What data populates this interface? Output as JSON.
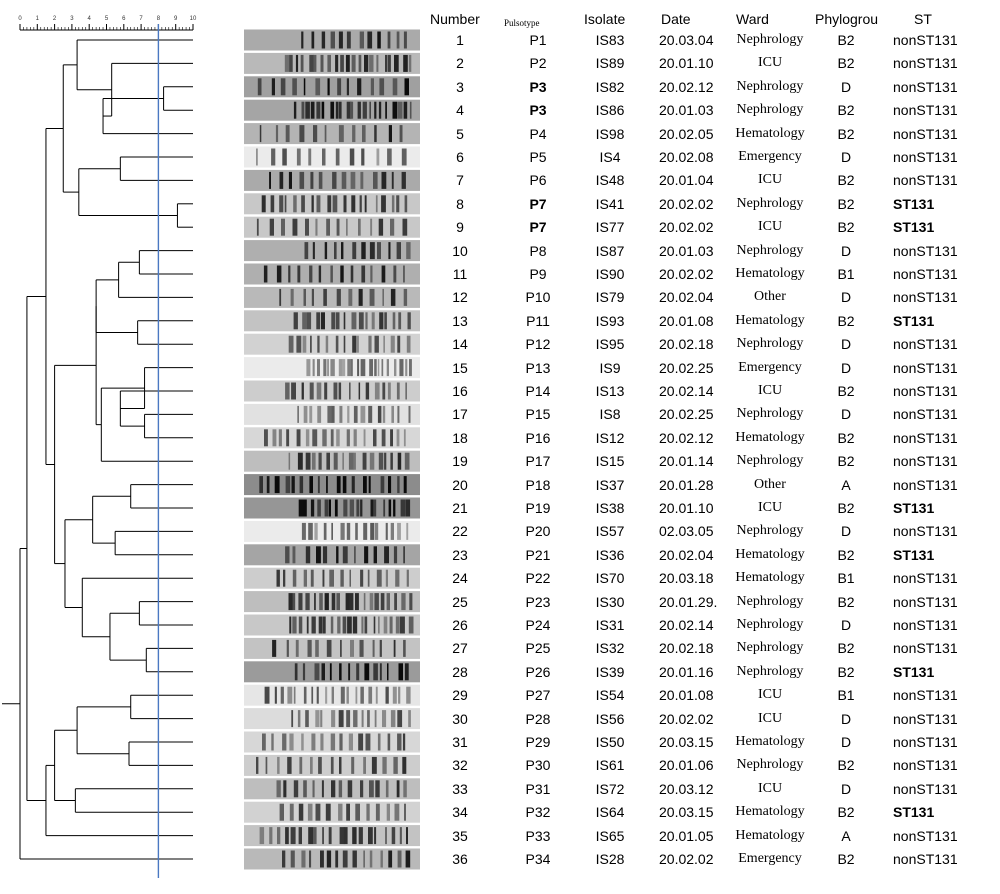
{
  "header": {
    "number": "Number",
    "pulsotype": "Pulsotype",
    "isolate": "Isolate",
    "date": "Date",
    "ward": "Ward",
    "phylogroup": "Phylogrou",
    "st": "ST"
  },
  "scale_ticks": [
    "0",
    "1",
    "2",
    "3",
    "4",
    "5",
    "6",
    "7",
    "8",
    "9",
    "10"
  ],
  "cutoff_similarity": 0.8,
  "colors": {
    "cutoff_line": "#4a78c2",
    "ink": "#000000"
  },
  "rows": [
    {
      "number": "1",
      "pulsotype": "P1",
      "isolate": "IS83",
      "date": "20.03.04",
      "ward": "Nephrology",
      "phylogroup": "B2",
      "st": "nonST131",
      "pulsotype_bold": false,
      "st_bold": false
    },
    {
      "number": "2",
      "pulsotype": "P2",
      "isolate": "IS89",
      "date": "20.01.10",
      "ward": "ICU",
      "phylogroup": "B2",
      "st": "nonST131",
      "pulsotype_bold": false,
      "st_bold": false
    },
    {
      "number": "3",
      "pulsotype": "P3",
      "isolate": "IS82",
      "date": "20.02.12",
      "ward": "Nephrology",
      "phylogroup": "D",
      "st": "nonST131",
      "pulsotype_bold": true,
      "st_bold": false
    },
    {
      "number": "4",
      "pulsotype": "P3",
      "isolate": "IS86",
      "date": "20.01.03",
      "ward": "Nephrology",
      "phylogroup": "B2",
      "st": "nonST131",
      "pulsotype_bold": true,
      "st_bold": false
    },
    {
      "number": "5",
      "pulsotype": "P4",
      "isolate": "IS98",
      "date": "20.02.05",
      "ward": "Hematology",
      "phylogroup": "B2",
      "st": "nonST131",
      "pulsotype_bold": false,
      "st_bold": false
    },
    {
      "number": "6",
      "pulsotype": "P5",
      "isolate": "IS4",
      "date": "20.02.08",
      "ward": "Emergency",
      "phylogroup": "D",
      "st": "nonST131",
      "pulsotype_bold": false,
      "st_bold": false
    },
    {
      "number": "7",
      "pulsotype": "P6",
      "isolate": "IS48",
      "date": "20.01.04",
      "ward": "ICU",
      "phylogroup": "B2",
      "st": "nonST131",
      "pulsotype_bold": false,
      "st_bold": false
    },
    {
      "number": "8",
      "pulsotype": "P7",
      "isolate": "IS41",
      "date": "20.02.02",
      "ward": "Nephrology",
      "phylogroup": "B2",
      "st": "ST131",
      "pulsotype_bold": true,
      "st_bold": true
    },
    {
      "number": "9",
      "pulsotype": "P7",
      "isolate": "IS77",
      "date": "20.02.02",
      "ward": "ICU",
      "phylogroup": "B2",
      "st": "ST131",
      "pulsotype_bold": true,
      "st_bold": true
    },
    {
      "number": "10",
      "pulsotype": "P8",
      "isolate": "IS87",
      "date": "20.01.03",
      "ward": "Nephrology",
      "phylogroup": "D",
      "st": "nonST131",
      "pulsotype_bold": false,
      "st_bold": false
    },
    {
      "number": "11",
      "pulsotype": "P9",
      "isolate": "IS90",
      "date": "20.02.02",
      "ward": "Hematology",
      "phylogroup": "B1",
      "st": "nonST131",
      "pulsotype_bold": false,
      "st_bold": false
    },
    {
      "number": "12",
      "pulsotype": "P10",
      "isolate": "IS79",
      "date": "20.02.04",
      "ward": "Other",
      "phylogroup": "D",
      "st": "nonST131",
      "pulsotype_bold": false,
      "st_bold": false
    },
    {
      "number": "13",
      "pulsotype": "P11",
      "isolate": "IS93",
      "date": "20.01.08",
      "ward": "Hematology",
      "phylogroup": "B2",
      "st": "ST131",
      "pulsotype_bold": false,
      "st_bold": true
    },
    {
      "number": "14",
      "pulsotype": "P12",
      "isolate": "IS95",
      "date": "20.02.18",
      "ward": "Nephrology",
      "phylogroup": "D",
      "st": "nonST131",
      "pulsotype_bold": false,
      "st_bold": false
    },
    {
      "number": "15",
      "pulsotype": "P13",
      "isolate": "IS9",
      "date": "20.02.25",
      "ward": "Emergency",
      "phylogroup": "D",
      "st": "nonST131",
      "pulsotype_bold": false,
      "st_bold": false
    },
    {
      "number": "16",
      "pulsotype": "P14",
      "isolate": "IS13",
      "date": "20.02.14",
      "ward": "ICU",
      "phylogroup": "B2",
      "st": "nonST131",
      "pulsotype_bold": false,
      "st_bold": false
    },
    {
      "number": "17",
      "pulsotype": "P15",
      "isolate": "IS8",
      "date": "20.02.25",
      "ward": "Nephrology",
      "phylogroup": "D",
      "st": "nonST131",
      "pulsotype_bold": false,
      "st_bold": false
    },
    {
      "number": "18",
      "pulsotype": "P16",
      "isolate": "IS12",
      "date": "20.02.12",
      "ward": "Hematology",
      "phylogroup": "B2",
      "st": "nonST131",
      "pulsotype_bold": false,
      "st_bold": false
    },
    {
      "number": "19",
      "pulsotype": "P17",
      "isolate": "IS15",
      "date": "20.01.14",
      "ward": "Nephrology",
      "phylogroup": "B2",
      "st": "nonST131",
      "pulsotype_bold": false,
      "st_bold": false
    },
    {
      "number": "20",
      "pulsotype": "P18",
      "isolate": "IS37",
      "date": "20.01.28",
      "ward": "Other",
      "phylogroup": "A",
      "st": "nonST131",
      "pulsotype_bold": false,
      "st_bold": false
    },
    {
      "number": "21",
      "pulsotype": "P19",
      "isolate": "IS38",
      "date": "20.01.10",
      "ward": "ICU",
      "phylogroup": "B2",
      "st": "ST131",
      "pulsotype_bold": false,
      "st_bold": true
    },
    {
      "number": "22",
      "pulsotype": "P20",
      "isolate": "IS57",
      "date": "02.03.05",
      "ward": "Nephrology",
      "phylogroup": "D",
      "st": "nonST131",
      "pulsotype_bold": false,
      "st_bold": false
    },
    {
      "number": "23",
      "pulsotype": "P21",
      "isolate": "IS36",
      "date": "20.02.04",
      "ward": "Hematology",
      "phylogroup": "B2",
      "st": "ST131",
      "pulsotype_bold": false,
      "st_bold": true
    },
    {
      "number": "24",
      "pulsotype": "P22",
      "isolate": "IS70",
      "date": "20.03.18",
      "ward": "Hematology",
      "phylogroup": "B1",
      "st": "nonST131",
      "pulsotype_bold": false,
      "st_bold": false
    },
    {
      "number": "25",
      "pulsotype": "P23",
      "isolate": "IS30",
      "date": "20.01.29.",
      "ward": "Nephrology",
      "phylogroup": "B2",
      "st": "nonST131",
      "pulsotype_bold": false,
      "st_bold": false
    },
    {
      "number": "26",
      "pulsotype": "P24",
      "isolate": "IS31",
      "date": "20.02.14",
      "ward": "Nephrology",
      "phylogroup": "D",
      "st": "nonST131",
      "pulsotype_bold": false,
      "st_bold": false
    },
    {
      "number": "27",
      "pulsotype": "P25",
      "isolate": "IS32",
      "date": "20.02.18",
      "ward": "Nephrology",
      "phylogroup": "B2",
      "st": "nonST131",
      "pulsotype_bold": false,
      "st_bold": false
    },
    {
      "number": "28",
      "pulsotype": "P26",
      "isolate": "IS39",
      "date": "20.01.16",
      "ward": "Nephrology",
      "phylogroup": "B2",
      "st": "ST131",
      "pulsotype_bold": false,
      "st_bold": true
    },
    {
      "number": "29",
      "pulsotype": "P27",
      "isolate": "IS54",
      "date": "20.01.08",
      "ward": "ICU",
      "phylogroup": "B1",
      "st": "nonST131",
      "pulsotype_bold": false,
      "st_bold": false
    },
    {
      "number": "30",
      "pulsotype": "P28",
      "isolate": "IS56",
      "date": "20.02.02",
      "ward": "ICU",
      "phylogroup": "D",
      "st": "nonST131",
      "pulsotype_bold": false,
      "st_bold": false
    },
    {
      "number": "31",
      "pulsotype": "P29",
      "isolate": "IS50",
      "date": "20.03.15",
      "ward": "Hematology",
      "phylogroup": "D",
      "st": "nonST131",
      "pulsotype_bold": false,
      "st_bold": false
    },
    {
      "number": "32",
      "pulsotype": "P30",
      "isolate": "IS61",
      "date": "20.01.06",
      "ward": "Nephrology",
      "phylogroup": "B2",
      "st": "nonST131",
      "pulsotype_bold": false,
      "st_bold": false
    },
    {
      "number": "33",
      "pulsotype": "P31",
      "isolate": "IS72",
      "date": "20.03.12",
      "ward": "ICU",
      "phylogroup": "D",
      "st": "nonST131",
      "pulsotype_bold": false,
      "st_bold": false
    },
    {
      "number": "34",
      "pulsotype": "P32",
      "isolate": "IS64",
      "date": "20.03.15",
      "ward": "Hematology",
      "phylogroup": "B2",
      "st": "ST131",
      "pulsotype_bold": false,
      "st_bold": true
    },
    {
      "number": "35",
      "pulsotype": "P33",
      "isolate": "IS65",
      "date": "20.01.05",
      "ward": "Hematology",
      "phylogroup": "A",
      "st": "nonST131",
      "pulsotype_bold": false,
      "st_bold": false
    },
    {
      "number": "36",
      "pulsotype": "P34",
      "isolate": "IS28",
      "date": "20.02.02",
      "ward": "Emergency",
      "phylogroup": "B2",
      "st": "nonST131",
      "pulsotype_bold": false,
      "st_bold": false
    }
  ]
}
